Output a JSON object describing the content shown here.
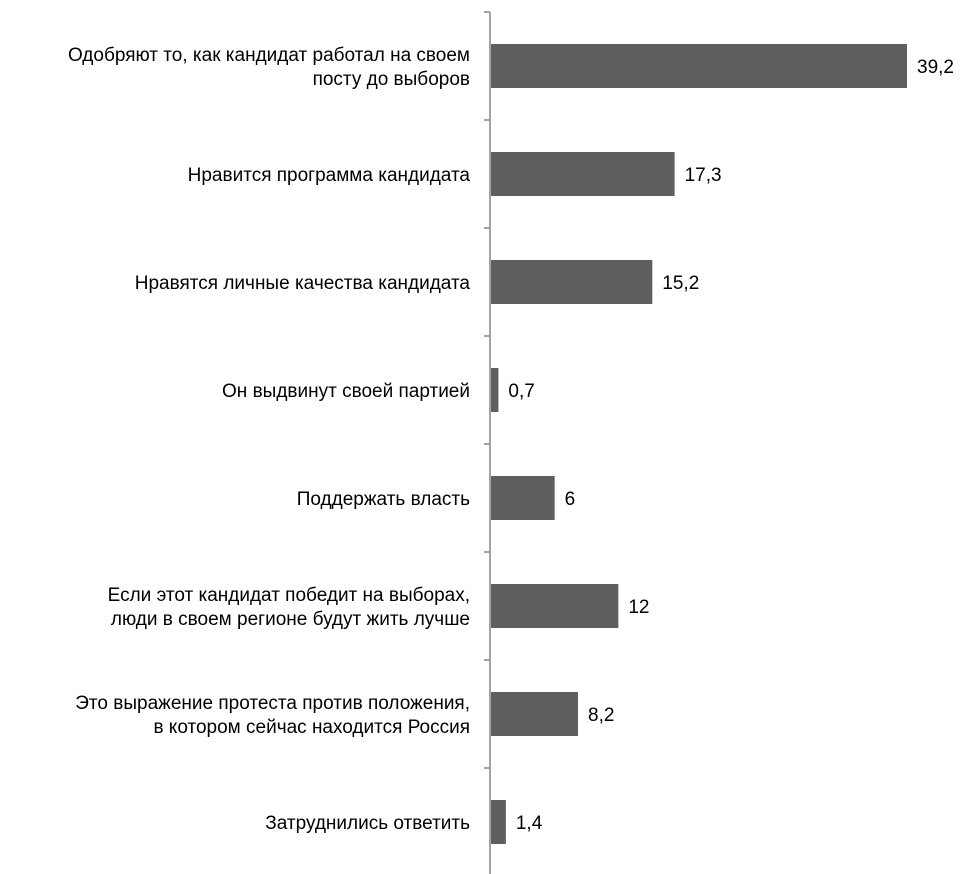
{
  "chart_data": {
    "type": "bar",
    "orientation": "horizontal",
    "title": "",
    "xlabel": "",
    "ylabel": "",
    "categories": [
      "Одобряют то, как кандидат работал на своем посту до выборов",
      "Нравится программа кандидата",
      "Нравятся личные качества кандидата",
      "Он выдвинут своей партией",
      "Поддержать власть",
      "Если этот кандидат победит на выборах, люди в своем регионе будут жить лучше",
      "Это выражение протеста против положения, в котором сейчас находится Россия",
      "Затруднились ответить"
    ],
    "category_lines": [
      [
        "Одобряют то, как кандидат работал на своем",
        "посту до выборов"
      ],
      [
        "Нравится программа кандидата"
      ],
      [
        "Нравятся личные качества кандидата"
      ],
      [
        "Он выдвинут своей партией"
      ],
      [
        "Поддержать власть"
      ],
      [
        "Если этот кандидат победит на выборах,",
        "люди в своем регионе будут жить лучше"
      ],
      [
        "Это выражение протеста против положения,",
        "в котором сейчас находится Россия"
      ],
      [
        "Затруднились ответить"
      ]
    ],
    "values": [
      39.2,
      17.3,
      15.2,
      0.7,
      6,
      12,
      8.2,
      1.4
    ],
    "value_labels": [
      "39,2",
      "17,3",
      "15,2",
      "0,7",
      "6",
      "12",
      "8,2",
      "1,4"
    ],
    "xlim": [
      0,
      40
    ],
    "grid": false,
    "legend": "none",
    "bar_color": "#5f5f5f",
    "axis_color": "#868686"
  }
}
